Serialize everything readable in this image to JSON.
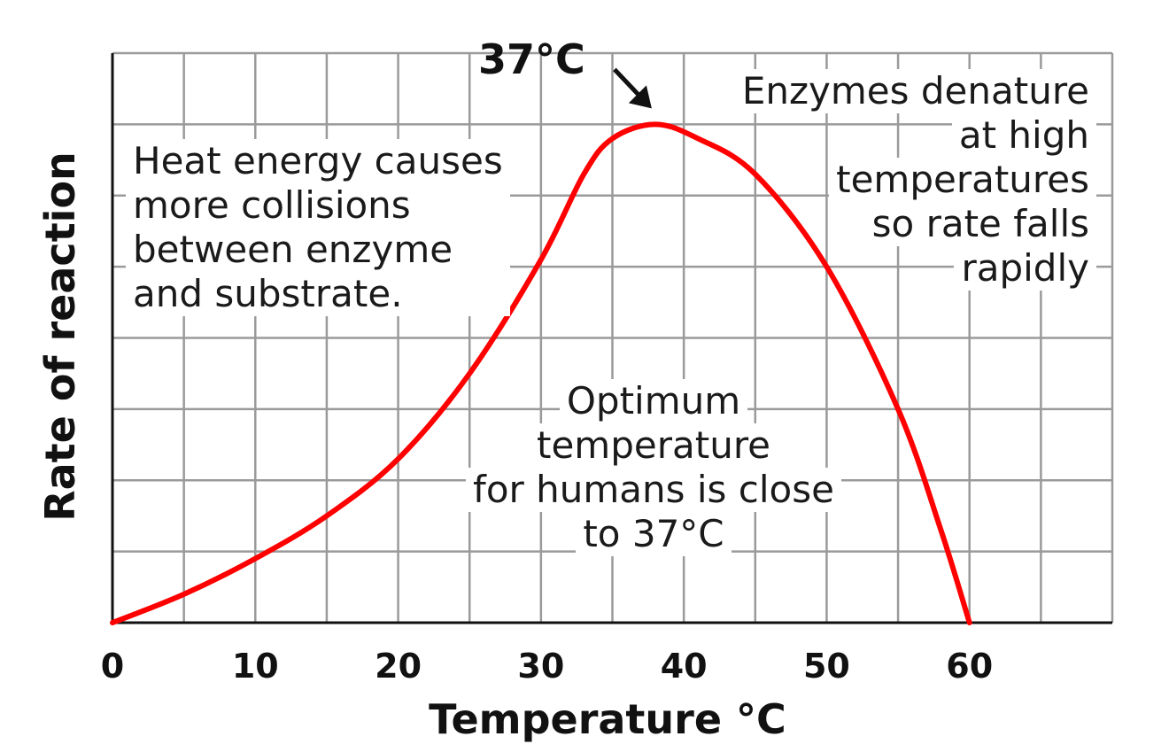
{
  "chart_data": {
    "type": "line",
    "xlabel": "Temperature °C",
    "ylabel": "Rate of reaction",
    "xlim": [
      0,
      70
    ],
    "ylim": [
      0,
      8
    ],
    "x_ticks": [
      "0",
      "10",
      "20",
      "30",
      "40",
      "50",
      "60"
    ],
    "grid": true,
    "series": [
      {
        "color": "#ff0000",
        "x": [
          0,
          5,
          10,
          15,
          20,
          25,
          30,
          33,
          35,
          38,
          41,
          45,
          50,
          55,
          58,
          60
        ],
        "y": [
          0,
          0.4,
          0.9,
          1.5,
          2.3,
          3.5,
          5.1,
          6.3,
          6.8,
          7.0,
          6.8,
          6.3,
          5.0,
          3.0,
          1.3,
          0.0
        ]
      }
    ],
    "annotations": {
      "peak_label": "37°C",
      "heat": [
        "Heat energy causes",
        "more collisions",
        "between enzyme",
        "and substrate."
      ],
      "denature": [
        "Enzymes denature",
        "at high",
        "temperatures",
        "so rate falls",
        "rapidly"
      ],
      "optimum": [
        "Optimum",
        "temperature",
        "for humans is close",
        "to 37°C"
      ]
    }
  }
}
